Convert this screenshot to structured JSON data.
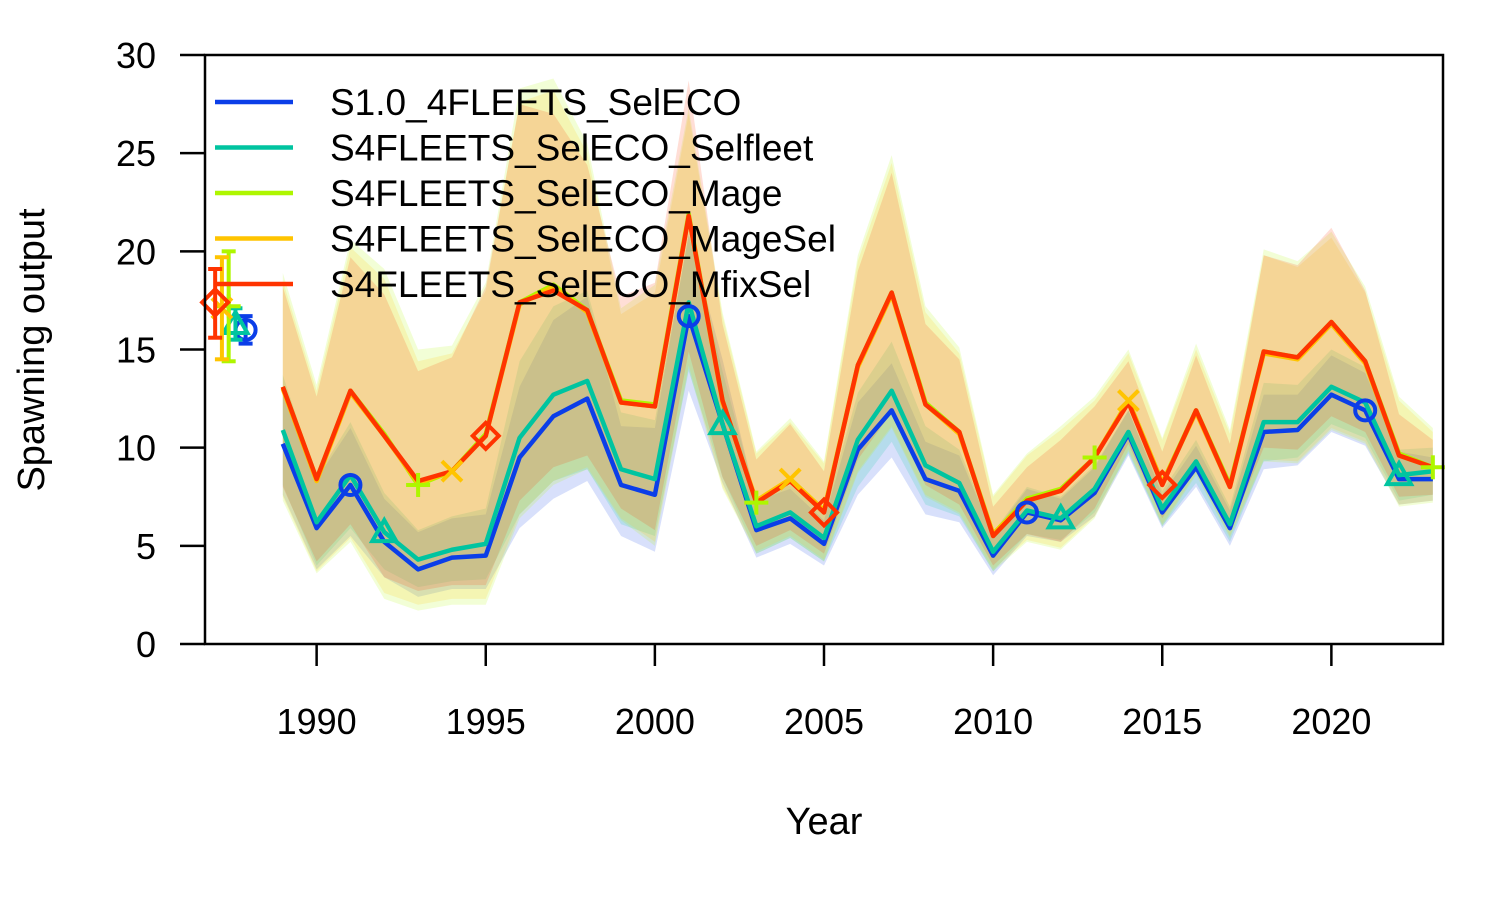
{
  "chart_data": {
    "type": "line",
    "xlabel": "Year",
    "ylabel": "Spawning output",
    "xlim": [
      1986.7,
      2023.3
    ],
    "ylim": [
      0,
      30
    ],
    "x_ticks": [
      1990,
      1995,
      2000,
      2005,
      2010,
      2015,
      2020
    ],
    "y_ticks": [
      0,
      5,
      10,
      15,
      20,
      25,
      30
    ],
    "legend_position": "top-left",
    "grid": false,
    "years": [
      1989,
      1990,
      1991,
      1992,
      1993,
      1994,
      1995,
      1996,
      1997,
      1998,
      1999,
      2000,
      2001,
      2002,
      2003,
      2004,
      2005,
      2006,
      2007,
      2008,
      2009,
      2010,
      2011,
      2012,
      2013,
      2014,
      2015,
      2016,
      2017,
      2018,
      2019,
      2020,
      2021,
      2022,
      2023
    ],
    "series": [
      {
        "name": "S1.0_4FLEETS_SelECO",
        "color": "#0b3ee8",
        "marker": "circle",
        "values": [
          10.2,
          5.9,
          8.1,
          5.2,
          3.8,
          4.4,
          4.5,
          9.5,
          11.6,
          12.5,
          8.1,
          7.6,
          16.7,
          11.2,
          5.8,
          6.4,
          5.1,
          9.9,
          11.9,
          8.4,
          7.8,
          4.5,
          6.7,
          6.3,
          7.7,
          10.7,
          6.7,
          9.0,
          5.9,
          10.8,
          10.9,
          12.7,
          11.9,
          8.4,
          8.4
        ],
        "virgin": {
          "x": 1987.9,
          "value": 16.0,
          "lo": 15.3,
          "hi": 16.7
        },
        "band": {
          "lo": [
            7.6,
            3.8,
            5.5,
            3.4,
            2.4,
            2.8,
            2.8,
            5.9,
            7.4,
            8.3,
            5.5,
            4.7,
            12.9,
            8.2,
            4.4,
            5.1,
            4.0,
            7.6,
            9.5,
            6.6,
            6.2,
            3.5,
            5.5,
            5.2,
            6.5,
            9.6,
            5.9,
            8.0,
            5.0,
            8.9,
            9.1,
            10.8,
            10.1,
            7.1,
            7.3
          ],
          "hi": [
            13.0,
            8.4,
            11.0,
            7.4,
            5.7,
            6.4,
            6.6,
            13.1,
            16.5,
            17.7,
            11.1,
            11.0,
            20.9,
            14.5,
            7.3,
            7.9,
            6.3,
            12.3,
            14.3,
            10.3,
            9.6,
            5.6,
            7.9,
            7.4,
            9.0,
            11.9,
            7.6,
            10.1,
            6.8,
            12.7,
            12.7,
            14.7,
            13.8,
            9.8,
            9.5
          ]
        }
      },
      {
        "name": "S4FLEETS_SelECO_Selfleet",
        "color": "#00c4a0",
        "marker": "triangle",
        "values": [
          10.9,
          6.2,
          8.6,
          5.7,
          4.3,
          4.8,
          5.1,
          10.5,
          12.7,
          13.4,
          8.9,
          8.4,
          17.4,
          11.2,
          6.0,
          6.7,
          5.4,
          10.4,
          12.9,
          9.1,
          8.2,
          4.7,
          6.8,
          6.4,
          7.9,
          10.8,
          6.9,
          9.3,
          6.1,
          11.3,
          11.3,
          13.1,
          12.3,
          8.6,
          8.8
        ],
        "virgin": {
          "x": 1987.6,
          "value": 16.3,
          "lo": 15.5,
          "hi": 17.1
        },
        "band": {
          "lo": [
            8.1,
            4.0,
            5.9,
            3.8,
            2.9,
            3.2,
            3.3,
            6.6,
            8.3,
            8.9,
            6.1,
            5.5,
            13.9,
            8.5,
            4.6,
            5.4,
            4.2,
            8.0,
            10.3,
            7.1,
            6.5,
            3.7,
            5.6,
            5.3,
            6.7,
            9.7,
            6.0,
            8.2,
            5.2,
            9.3,
            9.5,
            11.2,
            10.5,
            7.3,
            7.6
          ],
          "hi": [
            13.7,
            8.5,
            11.3,
            7.7,
            5.8,
            6.5,
            6.9,
            14.4,
            17.2,
            18.0,
            11.8,
            11.4,
            20.8,
            13.9,
            7.4,
            8.1,
            6.6,
            12.8,
            15.4,
            11.1,
            9.9,
            5.7,
            8.0,
            7.5,
            9.1,
            11.9,
            7.8,
            10.4,
            7.0,
            13.3,
            13.2,
            15.0,
            14.1,
            9.9,
            10.0
          ]
        }
      },
      {
        "name": "S4FLEETS_SelECO_Mage",
        "color": "#aef600",
        "marker": "plus",
        "values": [
          13.1,
          8.4,
          12.9,
          10.7,
          8.1,
          8.8,
          10.7,
          17.4,
          18.3,
          17.0,
          12.4,
          12.2,
          21.9,
          12.4,
          7.2,
          8.4,
          6.8,
          14.2,
          17.9,
          12.3,
          10.8,
          5.6,
          7.4,
          7.9,
          9.5,
          12.4,
          8.2,
          11.9,
          8.1,
          14.9,
          14.6,
          16.4,
          14.4,
          9.7,
          9.0
        ],
        "virgin": {
          "x": 1987.4,
          "value": 17.2,
          "lo": 14.4,
          "hi": 20.0
        },
        "band": {
          "lo": [
            7.3,
            3.6,
            5.2,
            2.3,
            1.7,
            2.0,
            2.0,
            6.4,
            8.1,
            8.9,
            6.3,
            5.0,
            14.0,
            7.9,
            4.6,
            5.4,
            4.2,
            8.7,
            11.0,
            7.5,
            6.6,
            3.7,
            5.2,
            4.8,
            6.4,
            9.8,
            6.0,
            8.6,
            5.4,
            9.3,
            9.2,
            10.9,
            10.2,
            7.0,
            7.2
          ],
          "hi": [
            18.9,
            13.2,
            20.6,
            19.1,
            15.0,
            15.2,
            18.4,
            28.3,
            28.8,
            25.5,
            17.1,
            18.3,
            27.3,
            16.9,
            9.8,
            11.5,
            9.3,
            19.8,
            24.9,
            17.2,
            15.1,
            7.6,
            9.7,
            11.1,
            12.6,
            15.0,
            10.5,
            15.3,
            10.9,
            20.1,
            19.5,
            21.0,
            18.2,
            12.6,
            11.0
          ]
        }
      },
      {
        "name": "S4FLEETS_SelECO_MageSel",
        "color": "#ffc400",
        "marker": "x",
        "values": [
          13.0,
          8.3,
          12.8,
          10.6,
          8.2,
          8.8,
          10.6,
          17.3,
          18.2,
          16.9,
          12.3,
          12.1,
          21.8,
          12.3,
          7.3,
          8.4,
          6.8,
          14.1,
          17.8,
          12.2,
          10.7,
          5.6,
          7.3,
          7.8,
          9.5,
          12.4,
          8.2,
          11.8,
          8.0,
          14.8,
          14.5,
          16.3,
          14.3,
          9.6,
          9.0
        ],
        "virgin": {
          "x": 1987.2,
          "value": 17.1,
          "lo": 14.5,
          "hi": 19.7
        },
        "band": {
          "lo": [
            7.5,
            3.7,
            5.4,
            2.6,
            2.0,
            2.3,
            2.3,
            6.6,
            8.3,
            9.0,
            6.4,
            5.2,
            14.2,
            8.0,
            4.7,
            5.5,
            4.3,
            8.8,
            11.1,
            7.6,
            6.7,
            3.8,
            5.3,
            4.9,
            6.5,
            9.9,
            6.1,
            8.7,
            5.5,
            9.4,
            9.3,
            11.0,
            10.3,
            7.1,
            7.3
          ],
          "hi": [
            18.5,
            12.9,
            20.2,
            18.6,
            14.4,
            14.8,
            18.0,
            27.6,
            28.2,
            25.0,
            16.8,
            17.9,
            27.0,
            16.7,
            9.7,
            11.3,
            9.2,
            19.5,
            24.5,
            16.9,
            14.8,
            7.5,
            9.6,
            10.9,
            12.4,
            14.8,
            10.4,
            15.0,
            10.7,
            19.8,
            19.2,
            20.7,
            17.9,
            12.4,
            10.8
          ]
        }
      },
      {
        "name": "S4FLEETS_SelECO_MfixSel",
        "color": "#ff3300",
        "marker": "diamond",
        "values": [
          13.1,
          8.4,
          12.9,
          10.6,
          8.3,
          8.8,
          10.6,
          17.4,
          18.0,
          17.0,
          12.3,
          12.1,
          21.8,
          12.4,
          7.2,
          8.3,
          6.7,
          14.2,
          17.9,
          12.2,
          10.8,
          5.5,
          7.3,
          7.8,
          9.5,
          12.3,
          8.1,
          11.9,
          8.0,
          14.9,
          14.6,
          16.4,
          14.4,
          9.6,
          9.0
        ],
        "virgin": {
          "x": 1987.0,
          "value": 17.4,
          "lo": 15.6,
          "hi": 19.1
        },
        "band": {
          "lo": [
            8.0,
            4.2,
            6.1,
            3.4,
            2.7,
            3.0,
            3.0,
            7.3,
            9.0,
            9.6,
            6.9,
            5.8,
            14.9,
            8.5,
            5.0,
            5.8,
            4.6,
            9.4,
            11.8,
            8.1,
            7.1,
            4.0,
            5.6,
            5.2,
            6.9,
            10.2,
            6.4,
            9.1,
            5.8,
            10.0,
            9.9,
            11.6,
            10.8,
            7.5,
            7.6
          ],
          "hi": [
            18.2,
            12.6,
            19.7,
            17.8,
            13.9,
            14.6,
            18.2,
            27.5,
            27.0,
            24.4,
            17.7,
            18.4,
            28.7,
            16.3,
            9.4,
            11.2,
            8.8,
            19.0,
            24.0,
            16.3,
            14.5,
            7.0,
            9.0,
            10.4,
            12.1,
            14.4,
            9.8,
            14.7,
            10.2,
            19.8,
            19.3,
            21.2,
            18.0,
            11.7,
            10.4
          ]
        }
      }
    ],
    "marker_points": [
      {
        "series": 0,
        "years": [
          1991,
          2001,
          2011,
          2021
        ]
      },
      {
        "series": 1,
        "years": [
          1992,
          2002,
          2012,
          2022
        ]
      },
      {
        "series": 2,
        "years": [
          1993,
          2003,
          2013,
          2023
        ]
      },
      {
        "series": 3,
        "years": [
          1994,
          2004,
          2014
        ]
      },
      {
        "series": 4,
        "years": [
          1995,
          2005,
          2015
        ]
      }
    ]
  }
}
